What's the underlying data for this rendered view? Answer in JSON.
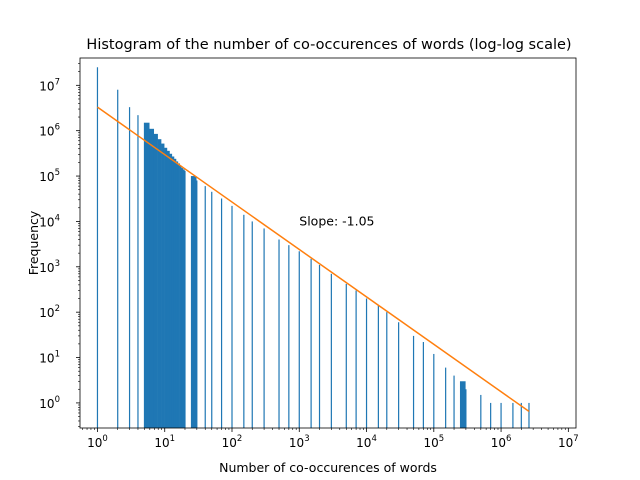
{
  "chart_data": {
    "type": "bar",
    "title": "Histogram of the number of co-occurences of words (log-log scale)",
    "xlabel": "Number of co-occurences of words",
    "ylabel": "Frequency",
    "x_scale": "log",
    "y_scale": "log",
    "xlim": [
      0.55,
      13000000
    ],
    "ylim": [
      0.28,
      40000000
    ],
    "x_ticks": [
      {
        "value": 1,
        "base": "10",
        "exp": "0"
      },
      {
        "value": 10,
        "base": "10",
        "exp": "1"
      },
      {
        "value": 100,
        "base": "10",
        "exp": "2"
      },
      {
        "value": 1000,
        "base": "10",
        "exp": "3"
      },
      {
        "value": 10000,
        "base": "10",
        "exp": "4"
      },
      {
        "value": 100000,
        "base": "10",
        "exp": "5"
      },
      {
        "value": 1000000,
        "base": "10",
        "exp": "6"
      },
      {
        "value": 10000000,
        "base": "10",
        "exp": "7"
      }
    ],
    "y_ticks": [
      {
        "value": 1,
        "base": "10",
        "exp": "0"
      },
      {
        "value": 10,
        "base": "10",
        "exp": "1"
      },
      {
        "value": 100,
        "base": "10",
        "exp": "2"
      },
      {
        "value": 1000,
        "base": "10",
        "exp": "3"
      },
      {
        "value": 10000,
        "base": "10",
        "exp": "4"
      },
      {
        "value": 100000,
        "base": "10",
        "exp": "5"
      },
      {
        "value": 1000000,
        "base": "10",
        "exp": "6"
      },
      {
        "value": 10000000,
        "base": "10",
        "exp": "7"
      }
    ],
    "bars": [
      [
        1,
        25000000
      ],
      [
        2,
        8000000
      ],
      [
        3,
        3300000
      ],
      [
        4,
        2200000
      ],
      [
        5,
        1500000
      ],
      [
        6,
        1100000
      ],
      [
        7,
        850000
      ],
      [
        8,
        650000
      ],
      [
        9,
        520000
      ],
      [
        10,
        420000
      ],
      [
        11,
        360000
      ],
      [
        12,
        310000
      ],
      [
        13,
        270000
      ],
      [
        14,
        240000
      ],
      [
        15,
        210000
      ],
      [
        16,
        190000
      ],
      [
        17,
        170000
      ],
      [
        18,
        150000
      ],
      [
        19,
        140000
      ],
      [
        20,
        130000
      ],
      [
        25,
        100000
      ],
      [
        30,
        80000
      ],
      [
        40,
        60000
      ],
      [
        50,
        45000
      ],
      [
        70,
        32000
      ],
      [
        100,
        22000
      ],
      [
        150,
        14000
      ],
      [
        200,
        10000
      ],
      [
        300,
        7000
      ],
      [
        500,
        4000
      ],
      [
        700,
        3000
      ],
      [
        1000,
        2200
      ],
      [
        1500,
        1500
      ],
      [
        2000,
        1100
      ],
      [
        3000,
        700
      ],
      [
        5000,
        420
      ],
      [
        7000,
        300
      ],
      [
        10000,
        200
      ],
      [
        15000,
        140
      ],
      [
        20000,
        100
      ],
      [
        30000,
        60
      ],
      [
        50000,
        30
      ],
      [
        70000,
        22
      ],
      [
        100000,
        12
      ],
      [
        150000,
        6
      ],
      [
        200000,
        4
      ],
      [
        250000,
        3
      ],
      [
        300000,
        2
      ],
      [
        500000,
        1.5
      ],
      [
        700000,
        1
      ],
      [
        1000000,
        1
      ],
      [
        1500000,
        1
      ],
      [
        2000000,
        1
      ],
      [
        2600000,
        1
      ]
    ],
    "fit_line": {
      "x": [
        1,
        2600000
      ],
      "y": [
        3300000,
        0.65
      ],
      "color": "#ff7f0e"
    },
    "bar_color": "#1f77b4",
    "annotation": {
      "text": "Slope: -1.05",
      "x": 1000,
      "y": 10000
    },
    "grid": false,
    "legend": "none"
  }
}
